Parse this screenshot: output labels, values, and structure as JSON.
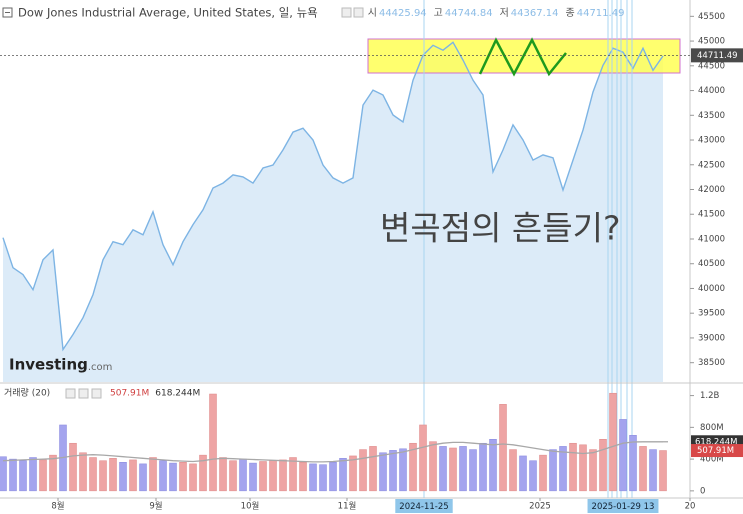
{
  "chart_data": [
    {
      "type": "area",
      "title": "Dow Jones Industrial Average, United States, 일, 뉴욕",
      "ohlc_labels": [
        "시",
        "고",
        "저",
        "종"
      ],
      "ohlc_values": [
        44425.94,
        44744.84,
        44367.14,
        44711.49
      ],
      "x": [
        0,
        1,
        2,
        3,
        4,
        5,
        6,
        7,
        8,
        9,
        10,
        11,
        12,
        13,
        14,
        15,
        16,
        17,
        18,
        19,
        20,
        21,
        22,
        23,
        24,
        25,
        26,
        27,
        28,
        29,
        30,
        31,
        32,
        33,
        34,
        35,
        36,
        37,
        38,
        39,
        40,
        41,
        42,
        43,
        44,
        45,
        46,
        47,
        48,
        49,
        50,
        51,
        52,
        53,
        54,
        55,
        56,
        57,
        58,
        59,
        60,
        61,
        62,
        63,
        64,
        65,
        66
      ],
      "values": [
        41025,
        40420,
        40280,
        39975,
        40580,
        40780,
        38767,
        39070,
        39410,
        39875,
        40580,
        40945,
        40885,
        41185,
        41085,
        41550,
        40885,
        40480,
        40945,
        41290,
        41590,
        42030,
        42130,
        42295,
        42255,
        42130,
        42435,
        42495,
        42800,
        43160,
        43240,
        43000,
        42495,
        42235,
        42130,
        42235,
        43706,
        44010,
        43910,
        43505,
        43365,
        44210,
        44715,
        44915,
        44815,
        44975,
        44615,
        44210,
        43910,
        42355,
        42800,
        43305,
        43000,
        42595,
        42700,
        42640,
        41990,
        42595,
        43200,
        43970,
        44510,
        44855,
        44775,
        44450,
        44855,
        44410,
        44700
      ],
      "color": "#7db4e4",
      "fill": "#dcebf8",
      "xlim": [
        -0.3,
        68.7
      ],
      "ylim": [
        38150,
        45830
      ],
      "yticks": [
        38500,
        39000,
        39500,
        40000,
        40500,
        41000,
        41500,
        42000,
        42500,
        43000,
        43500,
        44000,
        44500,
        45000,
        45500
      ],
      "last_value": 44711.49,
      "annotation": "변곡점의 흔들기?",
      "annotation_color": "#1e9a1e",
      "logo": [
        "Investing",
        ".com"
      ]
    },
    {
      "type": "bar",
      "label": "거래량 (20)",
      "values": [
        430,
        400,
        380,
        420,
        390,
        450,
        830,
        600,
        480,
        420,
        380,
        410,
        360,
        390,
        340,
        420,
        380,
        350,
        360,
        340,
        450,
        1220,
        420,
        380,
        400,
        350,
        370,
        380,
        390,
        420,
        360,
        340,
        330,
        360,
        410,
        440,
        520,
        560,
        480,
        510,
        530,
        600,
        830,
        620,
        560,
        540,
        560,
        520,
        600,
        650,
        1090,
        520,
        440,
        380,
        450,
        520,
        560,
        600,
        580,
        520,
        650,
        1230,
        900,
        700,
        560,
        520,
        508
      ],
      "ma_values": [
        380,
        385,
        390,
        395,
        400,
        405,
        420,
        440,
        450,
        455,
        450,
        440,
        430,
        420,
        410,
        400,
        390,
        380,
        375,
        370,
        380,
        400,
        410,
        405,
        400,
        395,
        390,
        385,
        380,
        375,
        370,
        365,
        365,
        370,
        380,
        390,
        410,
        430,
        450,
        470,
        490,
        520,
        550,
        580,
        600,
        610,
        610,
        600,
        590,
        580,
        590,
        580,
        560,
        540,
        520,
        500,
        490,
        480,
        470,
        480,
        520,
        560,
        600,
        615,
        618,
        618,
        618
      ],
      "up_color": "#eea4a4",
      "down_color": "#a4a4ee",
      "ma_color": "#a8a8a8",
      "ylim": [
        -90,
        1346
      ],
      "yticks": [
        0,
        {
          "value": 400,
          "label": "400M"
        },
        {
          "value": 800,
          "label": "800M"
        },
        {
          "value": 1200,
          "label": "1.2B"
        }
      ],
      "last_volume": {
        "value": 507.91,
        "label": "507.91M"
      },
      "last_ma": {
        "value": 618.244,
        "label": "618.244M"
      },
      "xticks": [
        {
          "value": 5.5,
          "label": "8월"
        },
        {
          "value": 15.3,
          "label": "9월"
        },
        {
          "value": 24.7,
          "label": "10월"
        },
        {
          "value": 34.4,
          "label": "11월"
        },
        {
          "value": 53.7,
          "label": "2025"
        },
        {
          "value": 68.7,
          "label": "20"
        }
      ],
      "cursor_labels": [
        {
          "value": 42.1,
          "label": "2024-11-25"
        },
        {
          "value": 62.0,
          "label": "2025-01-29 13"
        }
      ]
    }
  ]
}
